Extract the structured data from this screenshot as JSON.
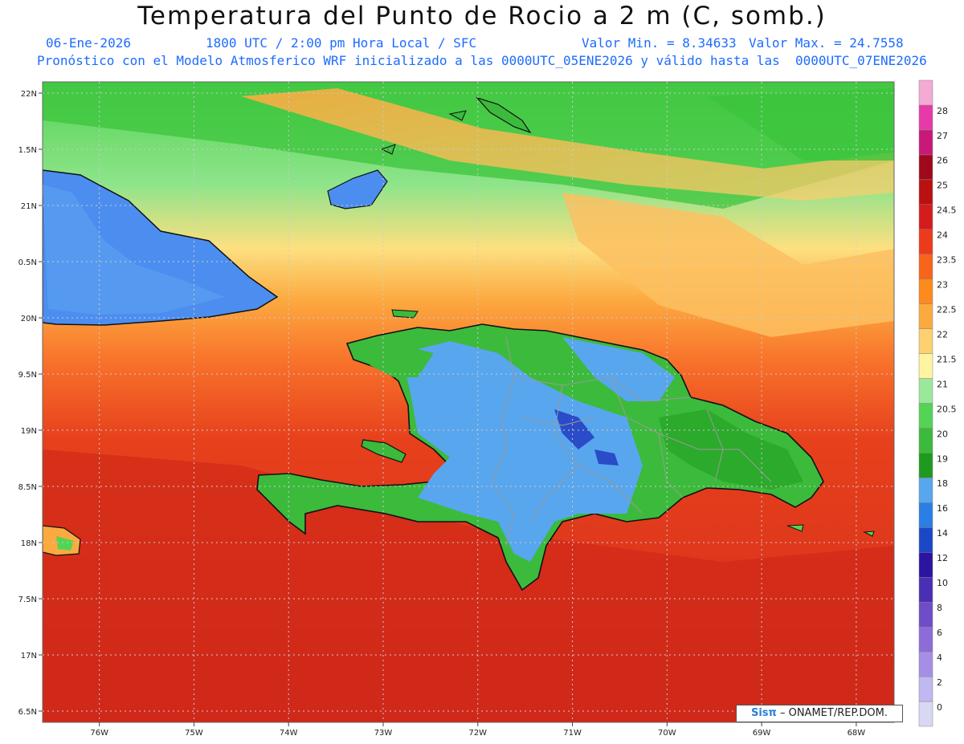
{
  "title": "Temperatura del Punto de Rocio a 2 m (C, somb.)",
  "header": {
    "date": "06-Ene-2026",
    "time": "1800 UTC / 2:00 pm Hora Local / SFC",
    "min_label": "Valor Min. = 8.34633",
    "max_label": "Valor Max. = 24.7558",
    "model_info": "Pronóstico con el Modelo Atmosferico WRF inicializado a las 0000UTC_05ENE2026 y válido hasta las  0000UTC_07ENE2026"
  },
  "map": {
    "lon_labels": [
      "76W",
      "75W",
      "74W",
      "73W",
      "72W",
      "71W",
      "70W",
      "69W",
      "68W"
    ],
    "lat_labels": [
      "22N",
      "1.5N",
      "21N",
      "0.5N",
      "20N",
      "9.5N",
      "19N",
      "8.5N",
      "18N",
      "7.5N",
      "17N",
      "6.5N"
    ],
    "lon_range": [
      -76.6,
      -67.6
    ],
    "lat_range": [
      16.4,
      22.1
    ]
  },
  "legend": {
    "levels": [
      "0",
      "2",
      "4",
      "6",
      "8",
      "10",
      "12",
      "14",
      "16",
      "18",
      "19",
      "20",
      "20.5",
      "21",
      "21.5",
      "22",
      "22.5",
      "23",
      "23.5",
      "24",
      "24.5",
      "25",
      "26",
      "27",
      "28"
    ],
    "colors": [
      "#d8d8f4",
      "#c0b8f0",
      "#a68ee6",
      "#8d6cd8",
      "#6f4cc8",
      "#4a2fb4",
      "#2a14a0",
      "#1c48c8",
      "#2a7ee6",
      "#58a6ee",
      "#1e9a1e",
      "#3cba3c",
      "#54d454",
      "#9ae89a",
      "#fff4a0",
      "#fdd070",
      "#fcaa40",
      "#fc8a1c",
      "#f8641c",
      "#ec3a1c",
      "#d41c1c",
      "#ba1010",
      "#a0081c",
      "#c8187a",
      "#e63aa8",
      "#f4aad4"
    ]
  },
  "credit": {
    "brand": "Sisπ",
    "text": "– ONAMET/REP.DOM."
  },
  "colors": {
    "ocean_south": "#d42c1c",
    "ocean_mid": "#f89030",
    "ocean_north": "#7cd86c",
    "land_cool": "#5aa0f0"
  }
}
